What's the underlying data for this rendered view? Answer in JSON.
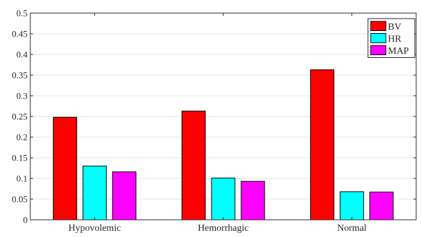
{
  "chart_data": {
    "type": "bar",
    "title": "",
    "xlabel": "",
    "ylabel": "",
    "categories": [
      "Hypovolemic",
      "Hemorrhagic",
      "Normal"
    ],
    "series": [
      {
        "name": "BV",
        "values": [
          0.248,
          0.263,
          0.363
        ],
        "color": "#ff0000"
      },
      {
        "name": "HR",
        "values": [
          0.13,
          0.101,
          0.068
        ],
        "color": "#00ffff"
      },
      {
        "name": "MAP",
        "values": [
          0.116,
          0.093,
          0.067
        ],
        "color": "#ff00ff"
      }
    ],
    "ylim": [
      0,
      0.5
    ],
    "yticks": [
      "0",
      "0.05",
      "0.1",
      "0.15",
      "0.2",
      "0.25",
      "0.3",
      "0.35",
      "0.4",
      "0.45",
      "0.5"
    ],
    "grid": true,
    "legend_position": "top-right",
    "bar_edge_color": "#000000",
    "grid_color": "#e6e6e6",
    "axis_color": "#262626"
  }
}
